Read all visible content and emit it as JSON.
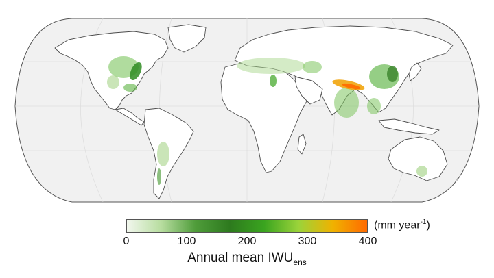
{
  "legend": {
    "unit_main": "(mm year",
    "unit_sup": "-1",
    "unit_close": ")",
    "ticks": [
      "0",
      "100",
      "200",
      "300",
      "400"
    ],
    "title_main": "Annual mean IWU",
    "title_sub": "ens",
    "gradient": [
      "#f2f7ee",
      "#b7dd9f",
      "#4f9c3a",
      "#2d7a1e",
      "#3aa41f",
      "#9bd33a",
      "#f0b200",
      "#ff6a00"
    ],
    "range": [
      0,
      400
    ]
  },
  "map": {
    "projection": "robinson",
    "ocean_color": "#f1f1f1",
    "land_color": "#ffffff",
    "coast_color": "#4d4d4d",
    "grid_color": "#dddddd"
  }
}
